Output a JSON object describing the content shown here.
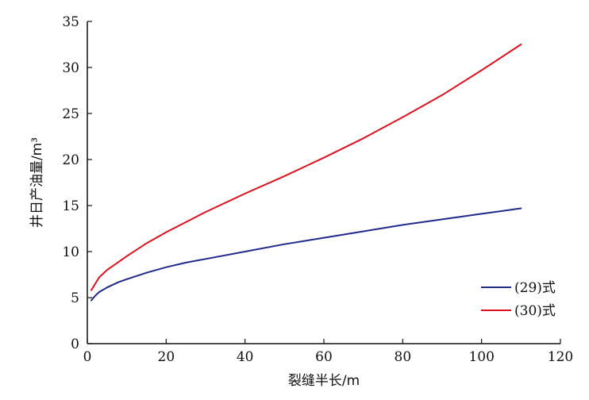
{
  "chart_data": {
    "type": "line",
    "xlabel": "裂缝半长/m",
    "ylabel": "井日产油量/m³",
    "xlim": [
      0,
      120
    ],
    "ylim": [
      0,
      35
    ],
    "xticks": [
      0,
      20,
      40,
      60,
      80,
      100,
      120
    ],
    "yticks": [
      0,
      5,
      10,
      15,
      20,
      25,
      30,
      35
    ],
    "grid": false,
    "legend_position": "bottom-right",
    "series": [
      {
        "name": "(29)式",
        "color": "#1f2a8a",
        "x": [
          1,
          2,
          3,
          5,
          8,
          10,
          15,
          20,
          25,
          30,
          40,
          50,
          60,
          70,
          80,
          90,
          100,
          110
        ],
        "y": [
          4.7,
          5.2,
          5.6,
          6.1,
          6.7,
          7.0,
          7.7,
          8.3,
          8.8,
          9.2,
          10.0,
          10.8,
          11.5,
          12.2,
          12.9,
          13.5,
          14.1,
          14.7
        ]
      },
      {
        "name": "(30)式",
        "color": "#e0101e",
        "x": [
          1,
          2,
          3,
          5,
          8,
          10,
          15,
          20,
          25,
          30,
          40,
          50,
          60,
          70,
          80,
          90,
          100,
          110
        ],
        "y": [
          5.8,
          6.5,
          7.2,
          8.0,
          8.9,
          9.5,
          10.9,
          12.1,
          13.2,
          14.3,
          16.3,
          18.2,
          20.2,
          22.3,
          24.6,
          27.0,
          29.7,
          32.5
        ]
      }
    ]
  }
}
